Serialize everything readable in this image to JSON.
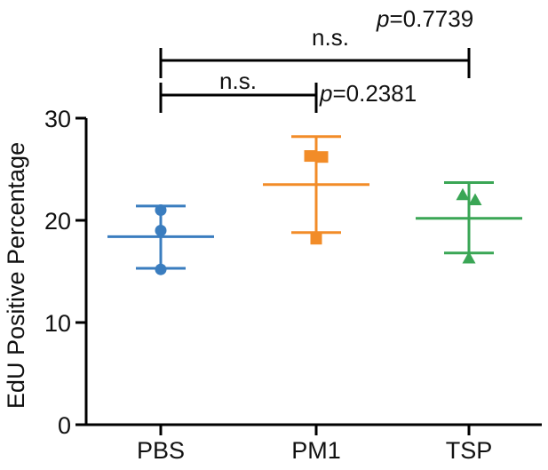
{
  "chart_data": {
    "type": "scatter",
    "ylabel": "EdU Positive Percentage",
    "xlabel": "",
    "ylim": [
      0,
      30
    ],
    "yticks": [
      0,
      10,
      20,
      30
    ],
    "categories": [
      "PBS",
      "PM1",
      "TSP"
    ],
    "groups": [
      {
        "category": "PBS",
        "color": "#3a7dbf",
        "marker": "circle",
        "points": [
          21.0,
          19.0,
          15.2
        ],
        "mean": 18.4,
        "sd_low": 15.3,
        "sd_high": 21.4
      },
      {
        "category": "PM1",
        "color": "#f28c28",
        "marker": "square",
        "points": [
          26.3,
          26.2,
          18.2
        ],
        "mean": 23.5,
        "sd_low": 18.8,
        "sd_high": 28.2
      },
      {
        "category": "TSP",
        "color": "#3aa655",
        "marker": "triangle",
        "points": [
          22.5,
          22.0,
          16.3
        ],
        "mean": 20.2,
        "sd_low": 16.8,
        "sd_high": 23.7
      }
    ],
    "annotations": [
      {
        "from": "PBS",
        "to": "PM1",
        "label": "n.s.",
        "p_prefix": "p",
        "p_value": "=0.2381"
      },
      {
        "from": "PBS",
        "to": "TSP",
        "label": "n.s.",
        "p_prefix": "p",
        "p_value": "=0.7739"
      }
    ]
  }
}
